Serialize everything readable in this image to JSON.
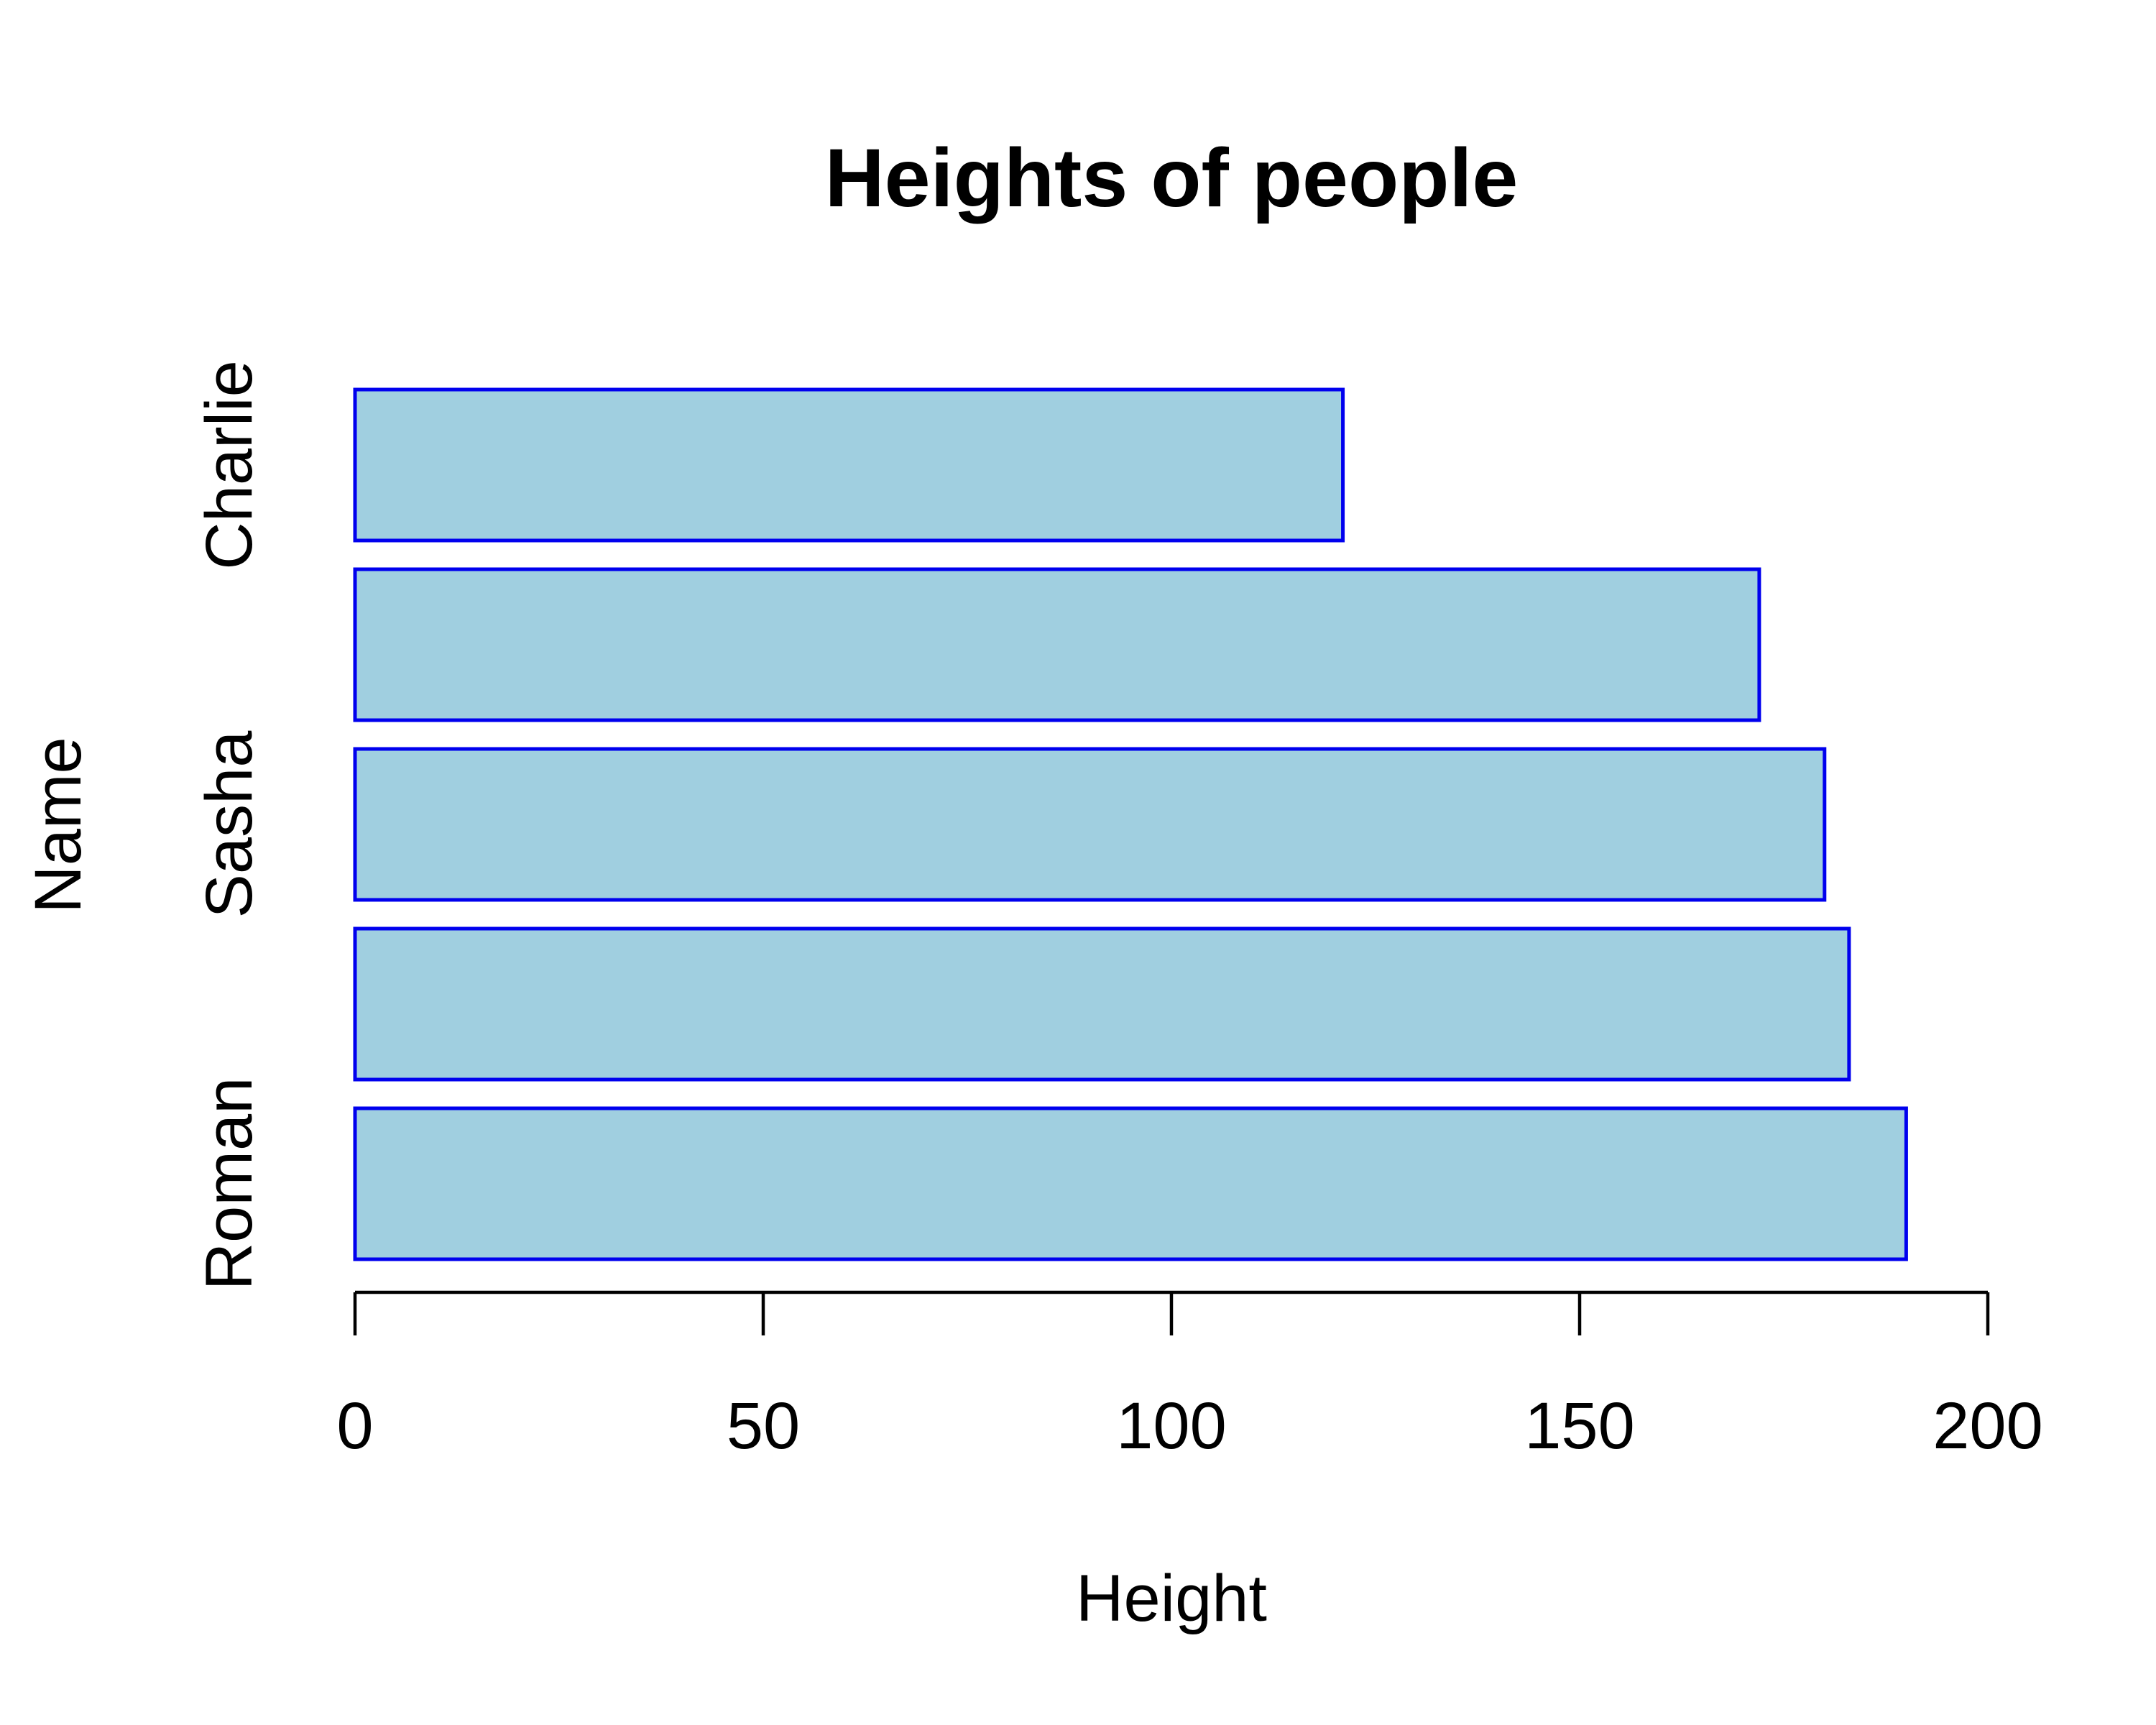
{
  "chart_data": {
    "type": "bar",
    "orientation": "horizontal",
    "title": "Heights of people",
    "xlabel": "Height",
    "ylabel": "Name",
    "categories": [
      "Roman",
      "",
      "Sasha",
      "",
      "Charlie"
    ],
    "values": [
      190,
      183,
      180,
      172,
      121
    ],
    "xlim": [
      0,
      200
    ],
    "xticks": [
      0,
      50,
      100,
      150,
      200
    ],
    "grid": false,
    "colors": {
      "bar_fill": "#a0cfe0",
      "bar_border": "#0000ee",
      "text": "#000000"
    }
  }
}
